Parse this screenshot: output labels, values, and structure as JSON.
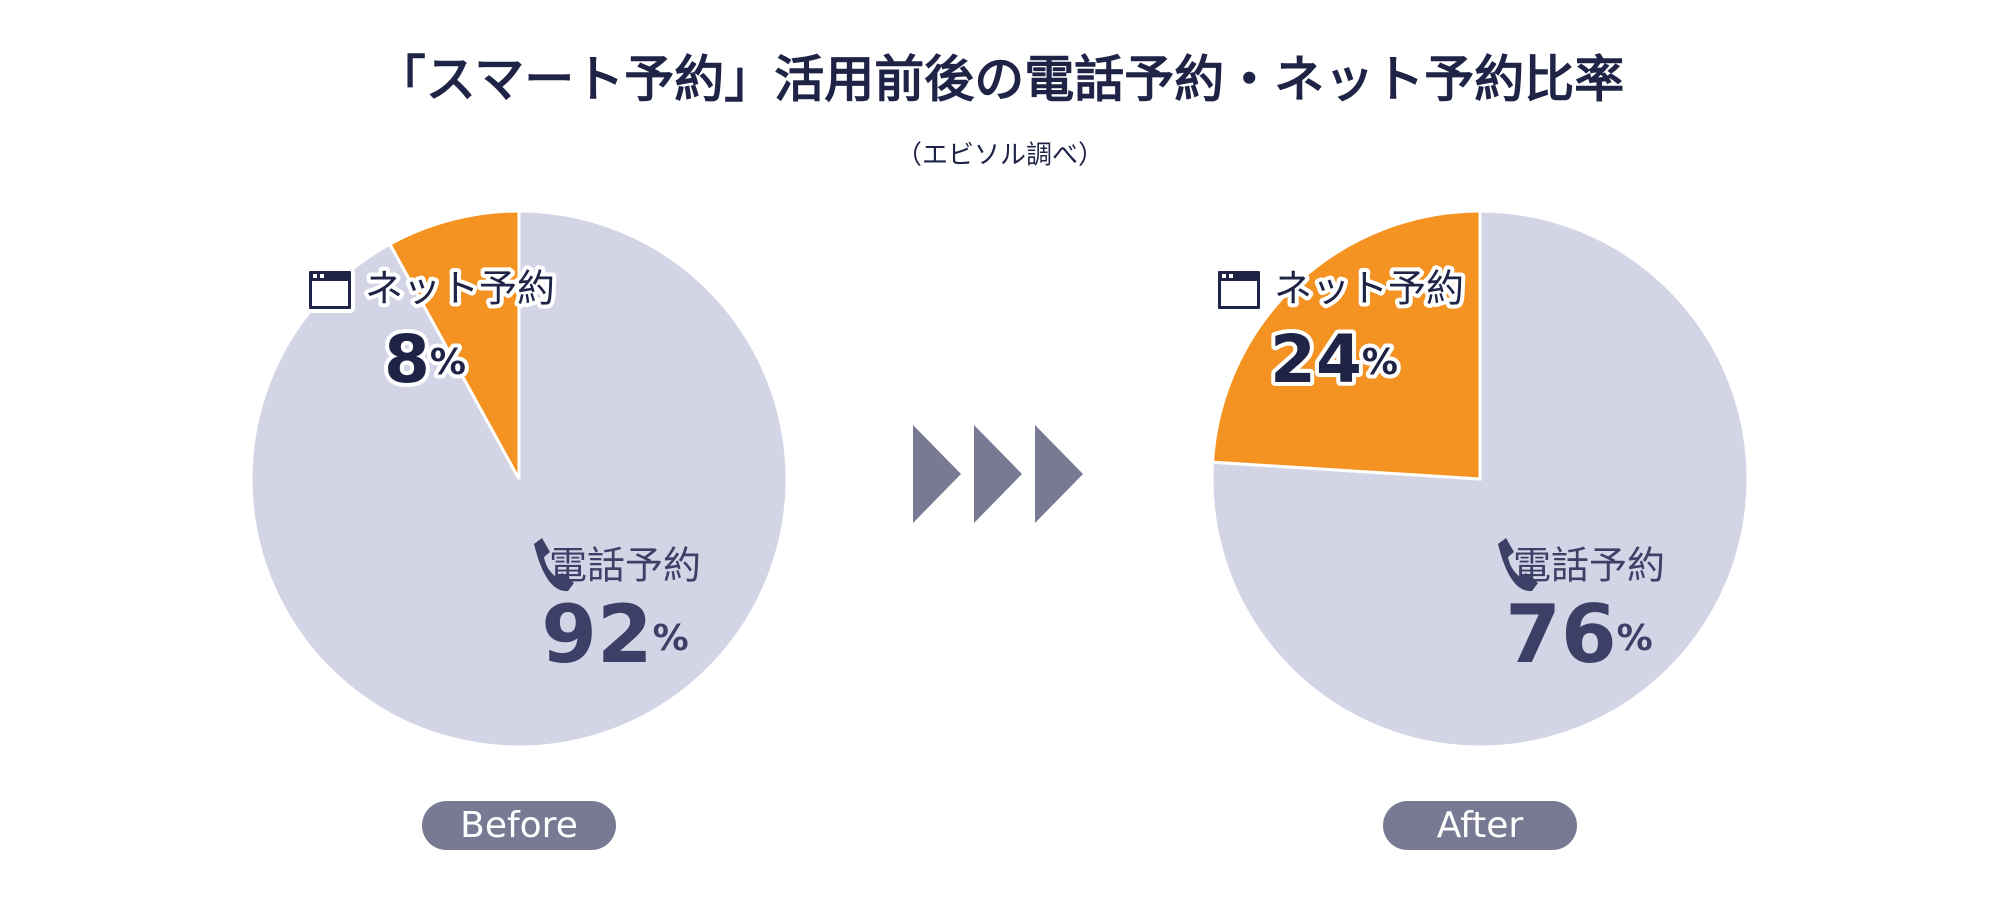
{
  "title": "「スマート予約」活用前後の電話予約・ネット予約比率",
  "subtitle": "（エビソル調べ）",
  "chart_data": [
    {
      "type": "pie",
      "label": "Before",
      "categories": [
        "ネット予約",
        "電話予約"
      ],
      "values": [
        8,
        92
      ],
      "value_suffix": "%",
      "colors": [
        "#f59322",
        "#d3d4e6"
      ]
    },
    {
      "type": "pie",
      "label": "After",
      "categories": [
        "ネット予約",
        "電話予約"
      ],
      "values": [
        24,
        76
      ],
      "value_suffix": "%",
      "colors": [
        "#f59322",
        "#d3d4e6"
      ]
    }
  ]
}
